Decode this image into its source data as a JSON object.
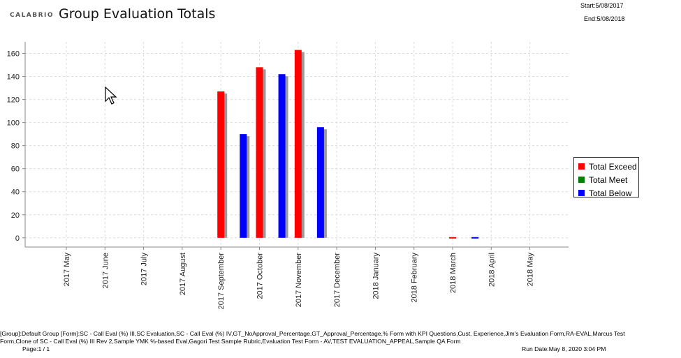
{
  "header": {
    "logo": "CALABRIO",
    "title": "Group Evaluation Totals",
    "start": "Start:5/08/2017",
    "end": "End:5/08/2018"
  },
  "chart_data": {
    "type": "bar",
    "categories": [
      "2017 May",
      "2017 June",
      "2017 July",
      "2017 August",
      "2017 September",
      "2017 October",
      "2017 November",
      "2017 December",
      "2018 January",
      "2018 February",
      "2018 March",
      "2018 April",
      "2018 May"
    ],
    "series": [
      {
        "name": "Total Exceed",
        "color": "#ff0000",
        "values": [
          null,
          null,
          null,
          null,
          127,
          148,
          163,
          null,
          null,
          null,
          0,
          null,
          null
        ],
        "offset": -0.5
      },
      {
        "name": "Total Meet",
        "color": "#008000",
        "values": [
          null,
          null,
          null,
          null,
          null,
          null,
          null,
          null,
          null,
          null,
          null,
          null,
          null
        ],
        "offset": 0
      },
      {
        "name": "Total Below",
        "color": "#0000ff",
        "values": [
          null,
          null,
          null,
          null,
          90,
          142,
          96,
          null,
          null,
          null,
          0,
          null,
          null
        ],
        "offset": 0.08
      }
    ],
    "yticks": [
      0,
      20,
      40,
      60,
      80,
      100,
      120,
      140,
      160
    ],
    "ylim": [
      -8,
      170
    ],
    "grid": true,
    "legend_position": "right"
  },
  "footer": {
    "filter_text": "[Group]:Default Group [Form]:SC - Call Eval (%) III,SC Evaluation,SC - Call Eval (%) IV,GT_NoApproval_Percentage,GT_Approval_Percentage,% Form with KPI Questions,Cust. Experience,Jim's Evaluation Form,RA-EVAL,Marcus Test Form,Clone of SC - Call Eval (%) III Rev 2,Sample YMK %-based Eval,Gagori Test Sample Rubric,Evaluation Test Form - AV,TEST EVALUATION_APPEAL,Sample QA Form",
    "page": "Page:1 / 1",
    "run_date": "Run Date:May 8, 2020 3:04 PM"
  },
  "icons": {
    "cursor": "mouse-pointer-icon"
  }
}
